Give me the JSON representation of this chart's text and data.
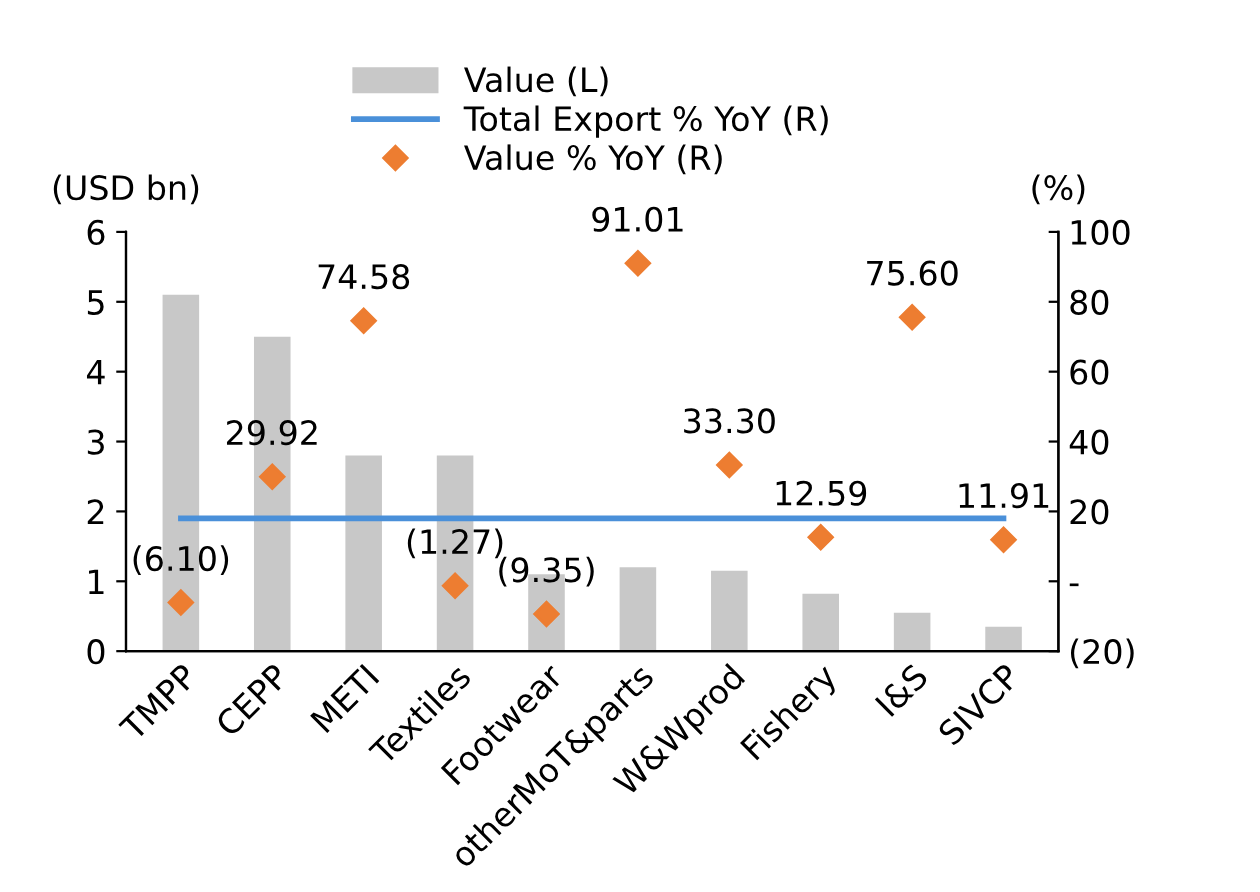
{
  "chart_data": {
    "type": "bar",
    "ylabel": "(USD bn)",
    "y2label": "(%)",
    "categories": [
      "TMPP",
      "CEPP",
      "METI",
      "Textiles",
      "Footwear",
      "otherMoT&parts",
      "W&Wprod",
      "Fishery",
      "I&S",
      "SIVCP"
    ],
    "series": [
      {
        "name": "Value (L)",
        "color": "#c8c8c8",
        "values": [
          5.1,
          4.5,
          2.8,
          2.8,
          1.1,
          1.2,
          1.15,
          0.82,
          0.55,
          0.35
        ]
      },
      {
        "name": "Total Export % YoY (R)",
        "type": "line",
        "axis": "y2",
        "color": "#4a90d9",
        "values": [
          18,
          18,
          18,
          18,
          18,
          18,
          18,
          18,
          18,
          18
        ]
      },
      {
        "name": "Value % YoY (R)",
        "type": "scatter",
        "axis": "y2",
        "color": "#ed7d31",
        "marker": "diamond",
        "values": [
          -6.1,
          29.92,
          74.58,
          -1.27,
          -9.35,
          91.01,
          33.3,
          12.59,
          75.6,
          11.91
        ],
        "value_labels": [
          "(6.10)",
          "29.92",
          "74.58",
          "(1.27)",
          "(9.35)",
          "91.01",
          "33.30",
          "12.59",
          "75.60",
          "11.91"
        ]
      }
    ],
    "ylim": [
      0,
      6
    ],
    "yticks": [
      0,
      1,
      2,
      3,
      4,
      5,
      6
    ],
    "y2lim": [
      -20,
      100
    ],
    "y2ticks": [
      {
        "value": -20,
        "label": "(20)"
      },
      {
        "value": 0,
        "label": "-"
      },
      20,
      40,
      60,
      80,
      100
    ],
    "grid": false,
    "legend": "top"
  }
}
